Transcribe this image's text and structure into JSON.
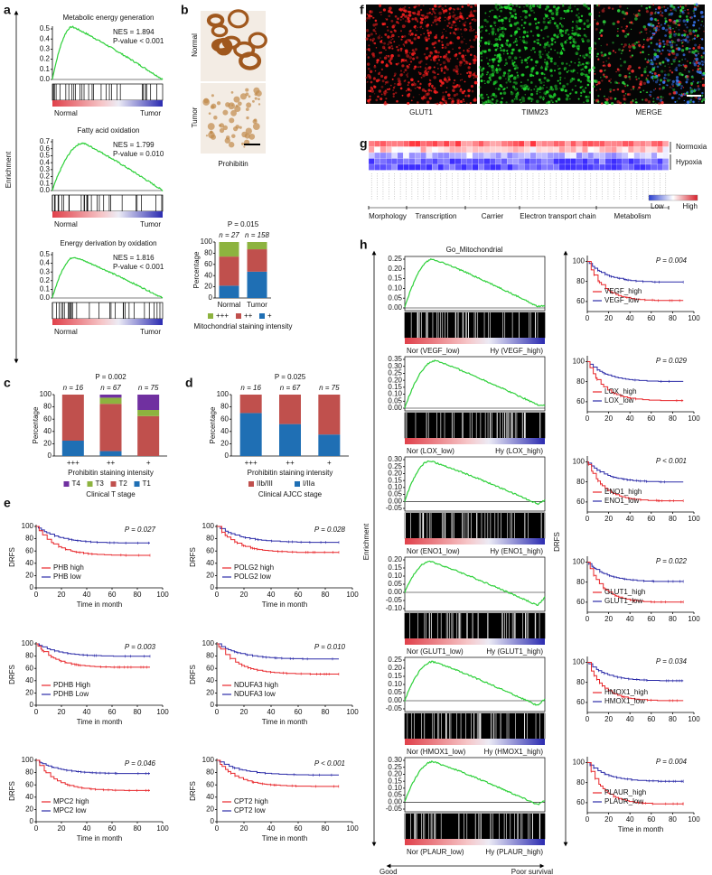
{
  "panel_labels": [
    "a",
    "b",
    "c",
    "d",
    "e",
    "f",
    "g",
    "h"
  ],
  "a": {
    "axis_label": "Enrichment",
    "plots": [
      {
        "title": "Metabolic energy generation",
        "nes": "NES = 1.894",
        "p_value": "P-value < 0.001",
        "yticks": [
          "0.5",
          "0.4",
          "0.3",
          "0.2",
          "0.1",
          "0.0"
        ],
        "left": "Normal",
        "right": "Tumor"
      },
      {
        "title": "Fatty acid oxidation",
        "nes": "NES = 1.799",
        "p_value": "P-value = 0.010",
        "yticks": [
          "0.7",
          "0.6",
          "0.5",
          "0.4",
          "0.3",
          "0.2",
          "0.1",
          "0.0"
        ],
        "left": "Normal",
        "right": "Tumor"
      },
      {
        "title": "Energy derivation by oxidation",
        "nes": "NES = 1.816",
        "p_value": "P-value < 0.001",
        "yticks": [
          "0.5",
          "0.4",
          "0.3",
          "0.2",
          "0.1",
          "0.0"
        ],
        "left": "Normal",
        "right": "Tumor"
      }
    ]
  },
  "b": {
    "image_labels": [
      "Normal",
      "Tumor"
    ],
    "stain": "Prohibitin",
    "p_value": "P = 0.015",
    "n": [
      "n = 27",
      "n = 158"
    ],
    "y_label": "Percentage",
    "categories": [
      "Normal",
      "Tumor"
    ],
    "ylim": [
      0,
      100
    ],
    "yticks": [
      0,
      20,
      40,
      60,
      80,
      100
    ],
    "series": [
      {
        "name": "+++",
        "color": "#8db33f",
        "values": [
          26,
          13
        ]
      },
      {
        "name": "++",
        "color": "#c0504d",
        "values": [
          52,
          40
        ]
      },
      {
        "name": "+",
        "color": "#1f6fb4",
        "values": [
          22,
          47
        ]
      }
    ],
    "x_label": "Mitochondrial staining intensity"
  },
  "c": {
    "p_value": "P = 0.002",
    "n": [
      "n = 16",
      "n = 67",
      "n = 75"
    ],
    "y_label": "Percentage",
    "categories": [
      "+++",
      "++",
      "+"
    ],
    "ylim": [
      0,
      100
    ],
    "yticks": [
      0,
      20,
      40,
      60,
      80,
      100
    ],
    "series": [
      {
        "name": "T4",
        "color": "#7030a0",
        "values": [
          0,
          5,
          25
        ]
      },
      {
        "name": "T3",
        "color": "#8db33f",
        "values": [
          0,
          10,
          10
        ]
      },
      {
        "name": "T2",
        "color": "#c0504d",
        "values": [
          75,
          77,
          65
        ]
      },
      {
        "name": "T1",
        "color": "#1f6fb4",
        "values": [
          25,
          8,
          0
        ]
      }
    ],
    "x_label": "Prohibitin staining intensity",
    "legend_title": "Clinical T stage"
  },
  "d": {
    "p_value": "P = 0.025",
    "n": [
      "n = 16",
      "n = 67",
      "n = 75"
    ],
    "y_label": "Percentage",
    "categories": [
      "+++",
      "++",
      "+"
    ],
    "ylim": [
      0,
      100
    ],
    "yticks": [
      0,
      20,
      40,
      60,
      80,
      100
    ],
    "series": [
      {
        "name": "IIb/III",
        "color": "#c0504d",
        "values": [
          30,
          48,
          65
        ]
      },
      {
        "name": "I/IIa",
        "color": "#1f6fb4",
        "values": [
          70,
          52,
          35
        ]
      }
    ],
    "x_label": "Prohibitin staining intensity",
    "legend_title": "Clinical AJCC stage"
  },
  "e": {
    "x_label": "Time in month",
    "y_label": "DRFS",
    "xticks": [
      0,
      20,
      40,
      60,
      80,
      100
    ],
    "yticks": [
      0,
      20,
      40,
      60,
      80,
      100
    ],
    "plots": [
      {
        "p_value": "P = 0.027",
        "high": "PHB high",
        "low": "PHB low"
      },
      {
        "p_value": "P = 0.028",
        "high": "POLG2 high",
        "low": "POLG2 low"
      },
      {
        "p_value": "P = 0.003",
        "high": "PDHB High",
        "low": "PDHB Low"
      },
      {
        "p_value": "P = 0.010",
        "high": "NDUFA3 high",
        "low": "NDUFA3 low"
      },
      {
        "p_value": "P = 0.046",
        "high": "MPC2 high",
        "low": "MPC2 low"
      },
      {
        "p_value": "P < 0.001",
        "high": "CPT2 high",
        "low": "CPT2 low"
      }
    ]
  },
  "f": {
    "labels": [
      "GLUT1",
      "TIMM23",
      "MERGE"
    ]
  },
  "g": {
    "rows": [
      "Normoxia",
      "Hypoxia"
    ],
    "scale": [
      "Low",
      "High"
    ],
    "groups": [
      "Morphology",
      "Transcription",
      "Carrier",
      "Electron transport chain",
      "Metabolism"
    ]
  },
  "h": {
    "gsea_title": "Go_Mitochondrial",
    "axis_left": "Enrichment",
    "axis_right": "DRFS",
    "good": "Good",
    "poor": "Poor survival",
    "km_x_label": "Time in month",
    "km_xticks": [
      0,
      20,
      40,
      60,
      80,
      100
    ],
    "km_yticks": [
      100,
      80,
      60
    ],
    "plots": [
      {
        "yticks": [
          "0.25",
          "0.20",
          "0.15",
          "0.10",
          "0.05",
          "0.00"
        ],
        "left": "Nor (VEGF_low)",
        "right": "Hy (VEGF_high)",
        "p_value": "P = 0.004",
        "high": "VEGF_high",
        "low": "VEGF_low"
      },
      {
        "yticks": [
          "0.35",
          "0.30",
          "0.25",
          "0.20",
          "0.15",
          "0.10",
          "0.05",
          "0.00"
        ],
        "left": "Nor (LOX_low)",
        "right": "Hy (LOX_high)",
        "p_value": "P = 0.029",
        "high": "LOX_high",
        "low": "LOX_low"
      },
      {
        "yticks": [
          "0.30",
          "0.25",
          "0.20",
          "0.15",
          "0.10",
          "0.05",
          "0.00",
          "-0.05"
        ],
        "left": "Nor (ENO1_low)",
        "right": "Hy (ENO1_high)",
        "p_value": "P < 0.001",
        "high": "ENO1_high",
        "low": "ENO1_low"
      },
      {
        "yticks": [
          "0.20",
          "0.15",
          "0.10",
          "0.05",
          "0.00",
          "-0.05",
          "-0.10"
        ],
        "left": "Nor (GLUT1_low)",
        "right": "Hy (GLUT1_high)",
        "p_value": "P = 0.022",
        "high": "GLUT1_high",
        "low": "GLUT1_low"
      },
      {
        "yticks": [
          "0.25",
          "0.20",
          "0.15",
          "0.10",
          "0.05",
          "0.00",
          "-0.05"
        ],
        "left": "Nor (HMOX1_low)",
        "right": "Hy (HMOX1_high)",
        "p_value": "P = 0.034",
        "high": "HMOX1_high",
        "low": "HMOX1_low"
      },
      {
        "yticks": [
          "0.30",
          "0.25",
          "0.20",
          "0.15",
          "0.10",
          "0.05",
          "0.00",
          "-0.05"
        ],
        "left": "Nor (PLAUR_low)",
        "right": "Hy (PLAUR_high)",
        "p_value": "P = 0.004",
        "high": "PLAUR_high",
        "low": "PLAUR_low"
      }
    ]
  }
}
